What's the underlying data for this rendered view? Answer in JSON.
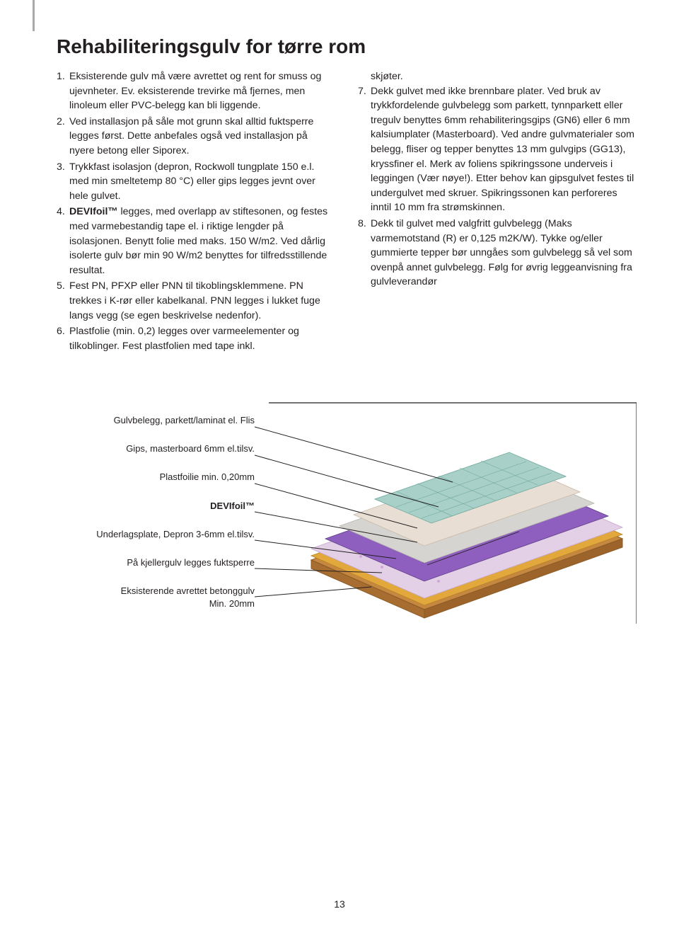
{
  "title": "Rehabiliteringsgulv for tørre rom",
  "page_number": "13",
  "left_steps": [
    "Eksisterende gulv må være avrettet og rent for smuss og ujevnheter. Ev. eksisterende trevirke må fjernes, men linoleum eller PVC-belegg kan bli liggende.",
    "Ved installasjon på såle mot grunn skal alltid fuktsperre legges først. Dette anbefales også ved installasjon på nyere betong eller Siporex.",
    "Trykkfast isolasjon (depron, Rockwoll tungplate 150 e.l. med min smeltetemp 80 °C) eller gips legges jevnt over hele gulvet.",
    "__BOLD__DEVIfoil™__ENDBOLD__ legges, med overlapp av stiftesonen, og festes med varmebestandig tape el. i riktige lengder på isolasjonen. Benytt folie med maks. 150 W/m2. Ved dårlig isolerte gulv bør min 90 W/m2 benyttes for tilfredsstillende resultat.",
    "Fest PN, PFXP eller PNN til tikoblingsklemmene. PN trekkes i K-rør eller kabelkanal. PNN legges i lukket fuge langs vegg (se egen beskrivelse nedenfor).",
    "Plastfolie (min. 0,2) legges over varmeelementer og tilkoblinger. Fest plastfolien med tape inkl."
  ],
  "right_cont_first": "skjøter.",
  "right_steps": [
    {
      "num": "7.",
      "text": "Dekk gulvet med ikke brennbare plater. Ved bruk av trykkfordelende gulvbelegg som parkett, tynnparkett eller tregulv benyttes 6mm rehabiliteringsgips (GN6) eller 6 mm kalsiumplater (Masterboard). Ved andre gulvmaterialer som belegg, fliser og tepper benyttes 13 mm gulvgips (GG13), kryssfiner el. Merk av foliens spikringssone underveis i leggingen (Vær nøye!). Etter behov kan gipsgulvet festes til undergulvet med skruer. Spikringssonen kan perforeres inntil 10 mm fra strømskinnen."
    },
    {
      "num": "8.",
      "text": "Dekk til gulvet med valgfritt gulvbelegg (Maks varmemotstand (R) er 0,125 m2K/W). Tykke og/eller gummierte tepper bør unngåes som gulvbelegg så vel som ovenpå annet gulvbelegg. Følg for øvrig leggeanvisning fra gulvleverandør"
    }
  ],
  "diagram_labels": [
    "Gulvbelegg, parkett/laminat el. Flis",
    "Gips, masterboard 6mm el.tilsv.",
    "Plastfoilie min. 0,20mm",
    "DEVIfoil™",
    "Underlagsplate, Depron 3-6mm el.tilsv.",
    "På kjellergulv legges fuktsperre",
    "Eksisterende avrettet betonggulv Min. 20mm"
  ],
  "diagram": {
    "type": "infographic",
    "layers": [
      {
        "name": "top_tile",
        "fill": "#a8d0c8",
        "stroke": "#6fa89c",
        "grid": true
      },
      {
        "name": "gips",
        "fill": "#e8ded4",
        "stroke": "#c7b9a8"
      },
      {
        "name": "plastfolie",
        "fill": "#d6d4d0",
        "stroke": "#b7b4ae"
      },
      {
        "name": "devifoil",
        "fill": "#8e5fbf",
        "stroke": "#5e3b85",
        "heating_lines": "#231f20"
      },
      {
        "name": "depron",
        "fill": "#e3d0e6",
        "stroke": "#c3a7ca",
        "pattern": "mottled"
      },
      {
        "name": "fuktsperre",
        "fill": "#e2a83c",
        "stroke": "#b5822a"
      },
      {
        "name": "betong",
        "fill": "#c6873f",
        "stroke": "#8a5c28",
        "texture": "speckled"
      }
    ],
    "frame_stroke": "#231f20",
    "frame_width": 1.2,
    "arrow_stroke": "#231f20",
    "arrow_width": 1,
    "background": "#ffffff"
  },
  "typography": {
    "title_fontsize": 28,
    "body_fontsize": 14.2,
    "label_fontsize": 13,
    "text_color": "#231f20"
  }
}
